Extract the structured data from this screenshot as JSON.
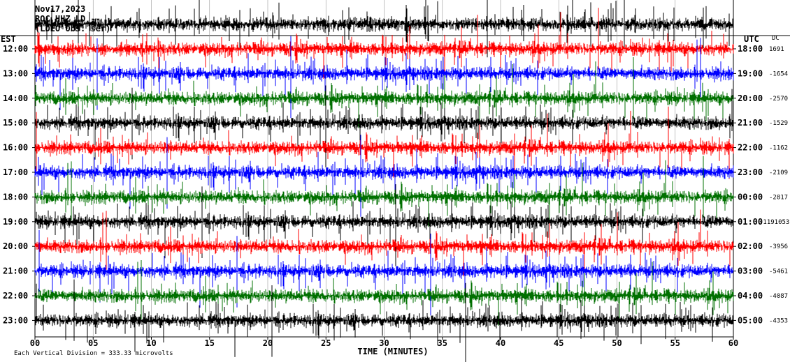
{
  "chart_data": {
    "type": "line",
    "title": [
      "Nov17,2023",
      "ROC HHZ LD --",
      "(LDEO Obs: ser)"
    ],
    "left_axis_label": "EST",
    "right_axis_label": "UTC",
    "dc_label": "DC",
    "xlabel": "TIME (MINUTES)",
    "footer": "Each Vertical Division = 333.33 microvolts",
    "x_ticks": [
      "00",
      "05",
      "10",
      "15",
      "20",
      "25",
      "30",
      "35",
      "40",
      "45",
      "50",
      "55",
      "60"
    ],
    "xlim": [
      0,
      60
    ],
    "grid": true,
    "rows": [
      {
        "est": "12:00",
        "utc": "18:00",
        "dc": "1691",
        "color": "#ff0000"
      },
      {
        "est": "13:00",
        "utc": "19:00",
        "dc": "-1654",
        "color": "#0000ff"
      },
      {
        "est": "14:00",
        "utc": "20:00",
        "dc": "-2570",
        "color": "#007000"
      },
      {
        "est": "15:00",
        "utc": "21:00",
        "dc": "-1529",
        "color": "#000000"
      },
      {
        "est": "16:00",
        "utc": "22:00",
        "dc": "-1162",
        "color": "#ff0000"
      },
      {
        "est": "17:00",
        "utc": "23:00",
        "dc": "-2109",
        "color": "#0000ff"
      },
      {
        "est": "18:00",
        "utc": "00:00",
        "dc": "-2817",
        "color": "#007000"
      },
      {
        "est": "19:00",
        "utc": "01:00",
        "dc": "-1191053",
        "color": "#000000"
      },
      {
        "est": "20:00",
        "utc": "02:00",
        "dc": "-3956",
        "color": "#ff0000"
      },
      {
        "est": "21:00",
        "utc": "03:00",
        "dc": "-5461",
        "color": "#0000ff"
      },
      {
        "est": "22:00",
        "utc": "04:00",
        "dc": "-4087",
        "color": "#007000"
      },
      {
        "est": "23:00",
        "utc": "05:00",
        "dc": "-4353",
        "color": "#000000"
      }
    ]
  }
}
